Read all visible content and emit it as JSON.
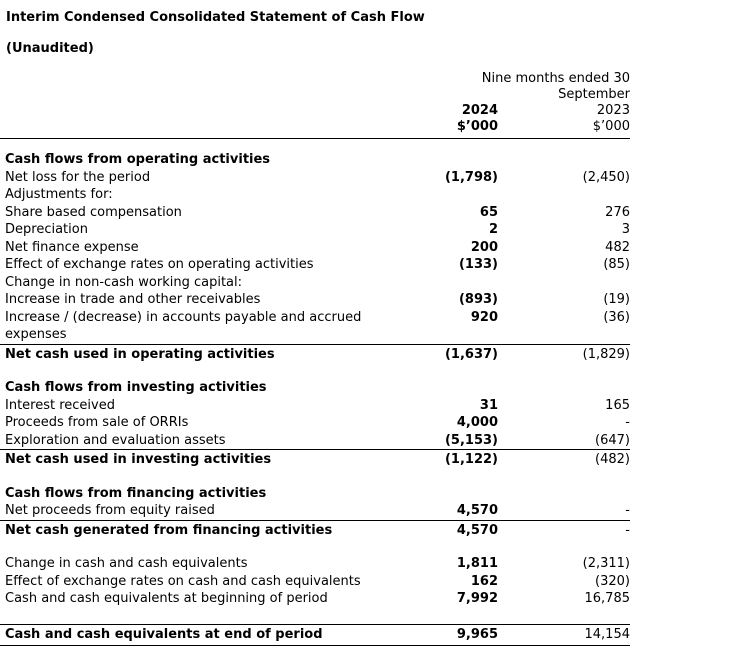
{
  "document": {
    "title": "Interim Condensed Consolidated Statement of Cash Flow",
    "subtitle": "(Unaudited)",
    "period": {
      "line1": "Nine months ended 30",
      "line2": "September"
    },
    "columns": [
      {
        "year": "2024",
        "unit": "$’000"
      },
      {
        "year": "2023",
        "unit": "$’000"
      }
    ],
    "colors": {
      "text": "#000000",
      "background": "#ffffff",
      "rule": "#000000"
    }
  },
  "rows": [
    {
      "style": "section",
      "label": "Cash flows from operating activities",
      "v2024": "",
      "v2023": ""
    },
    {
      "style": "item",
      "label": "Net loss for the period",
      "v2024": "(1,798)",
      "v2023": "(2,450)"
    },
    {
      "style": "item",
      "label": "Adjustments for:",
      "v2024": "",
      "v2023": ""
    },
    {
      "style": "item",
      "label": "Share based compensation",
      "v2024": "65",
      "v2023": "276"
    },
    {
      "style": "item",
      "label": "Depreciation",
      "v2024": "2",
      "v2023": "3"
    },
    {
      "style": "item",
      "label": "Net finance expense",
      "v2024": "200",
      "v2023": "482"
    },
    {
      "style": "item",
      "label": "Effect of exchange rates on operating activities",
      "v2024": "(133)",
      "v2023": "(85)"
    },
    {
      "style": "item",
      "label": "Change in non-cash working capital:",
      "v2024": "",
      "v2023": ""
    },
    {
      "style": "item",
      "label": "Increase in trade and other receivables",
      "v2024": "(893)",
      "v2023": "(19)"
    },
    {
      "style": "item",
      "label": "Increase / (decrease) in accounts payable and accrued expenses",
      "v2024": "920",
      "v2023": "(36)"
    },
    {
      "style": "total",
      "rule_above": true,
      "label": "Net cash used in operating activities",
      "v2024": "(1,637)",
      "v2023": "(1,829)"
    },
    {
      "style": "spacer"
    },
    {
      "style": "section",
      "label": "Cash flows from investing activities",
      "v2024": "",
      "v2023": ""
    },
    {
      "style": "item",
      "label": "Interest received",
      "v2024": "31",
      "v2023": "165"
    },
    {
      "style": "item",
      "label": "Proceeds from sale of ORRIs",
      "v2024": "4,000",
      "v2023": "-"
    },
    {
      "style": "item",
      "label": "Exploration and evaluation assets",
      "v2024": "(5,153)",
      "v2023": "(647)"
    },
    {
      "style": "total",
      "rule_above": true,
      "label": "Net cash used in investing activities",
      "v2024": "(1,122)",
      "v2023": "(482)"
    },
    {
      "style": "spacer"
    },
    {
      "style": "section",
      "label": "Cash flows from financing activities",
      "v2024": "",
      "v2023": ""
    },
    {
      "style": "item",
      "label": "Net proceeds from equity raised",
      "v2024": "4,570",
      "v2023": "-"
    },
    {
      "style": "total",
      "rule_above": true,
      "label": "Net cash generated from financing activities",
      "v2024": "4,570",
      "v2023": "-"
    },
    {
      "style": "spacer"
    },
    {
      "style": "item",
      "label": "Change in cash and cash equivalents",
      "v2024": "1,811",
      "v2023": "(2,311)"
    },
    {
      "style": "item",
      "label": "Effect of exchange rates on cash and cash equivalents",
      "v2024": "162",
      "v2023": "(320)"
    },
    {
      "style": "item",
      "label": "Cash and cash equivalents at beginning of period",
      "v2024": "7,992",
      "v2023": "16,785"
    },
    {
      "style": "spacer"
    },
    {
      "style": "total",
      "rule_above": true,
      "rule_below": true,
      "label": "Cash and cash equivalents at end of period",
      "v2024": "9,965",
      "v2023": "14,154"
    }
  ]
}
